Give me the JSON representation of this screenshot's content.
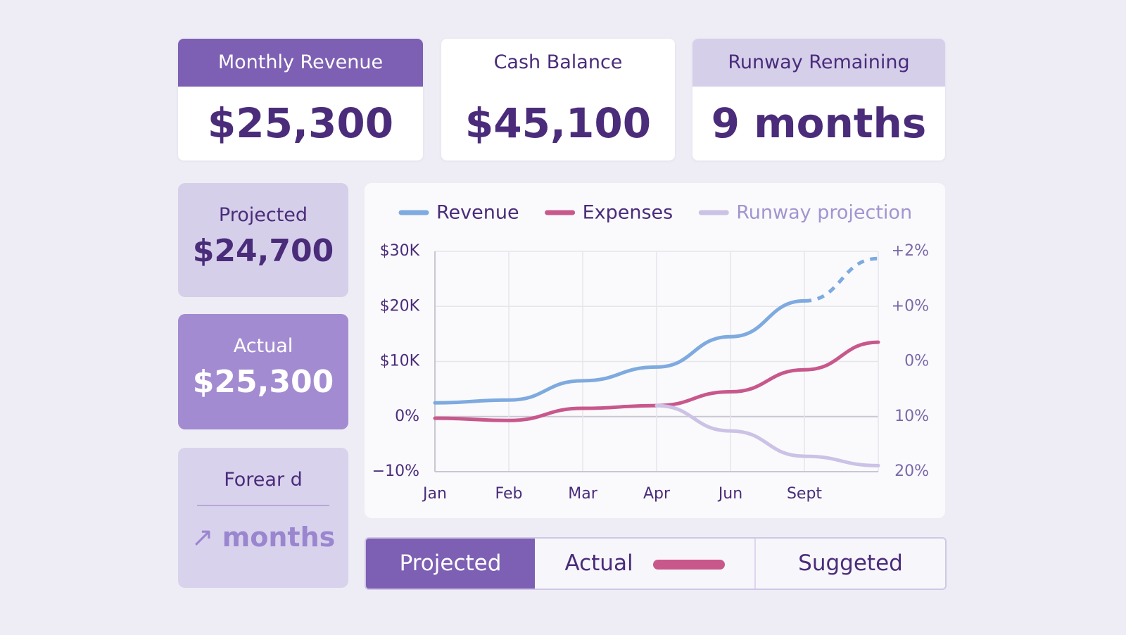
{
  "cards": [
    {
      "title": "Monthly Revenue",
      "value": "$25,300"
    },
    {
      "title": "Cash Balance",
      "value": "$45,100"
    },
    {
      "title": "Runway Remaining",
      "value": "9 months"
    }
  ],
  "side_cards": [
    {
      "title": "Projected",
      "value": "$24,700"
    },
    {
      "title": "Actual",
      "value": "$25,300"
    },
    {
      "title": "Forear d",
      "value": "months"
    }
  ],
  "tabs": [
    "Projected",
    "Actual",
    "Suggeted"
  ],
  "chart_data": {
    "type": "line",
    "categories": [
      "Jan",
      "Feb",
      "Mar",
      "Apr",
      "Jun",
      "Sept",
      null
    ],
    "series": [
      {
        "name": "Revenue",
        "color": "#7eaadf",
        "values": [
          2.5,
          3,
          6.5,
          9,
          14.5,
          21,
          28.7
        ],
        "dashed_last_segment": true
      },
      {
        "name": "Expenses",
        "color": "#c8588c",
        "values": [
          -0.3,
          -0.7,
          1.5,
          2,
          4.5,
          8.5,
          13.5
        ]
      },
      {
        "name": "Runway projection",
        "color": "#cbc2e6",
        "values": [
          null,
          null,
          null,
          2,
          -2.6,
          -7.2,
          -8.9
        ]
      }
    ],
    "ylim": [
      -10,
      30
    ],
    "yticks": [
      {
        "value": 30,
        "label": "$30K"
      },
      {
        "value": 20,
        "label": "$20K"
      },
      {
        "value": 10,
        "label": "$10K"
      },
      {
        "value": 0,
        "label": "0%"
      },
      {
        "value": -10,
        "label": "−10%"
      }
    ],
    "y2_labels": [
      "+2%",
      "+0%",
      "0%",
      "10%",
      "20%"
    ],
    "grid": true,
    "legend": "top"
  }
}
